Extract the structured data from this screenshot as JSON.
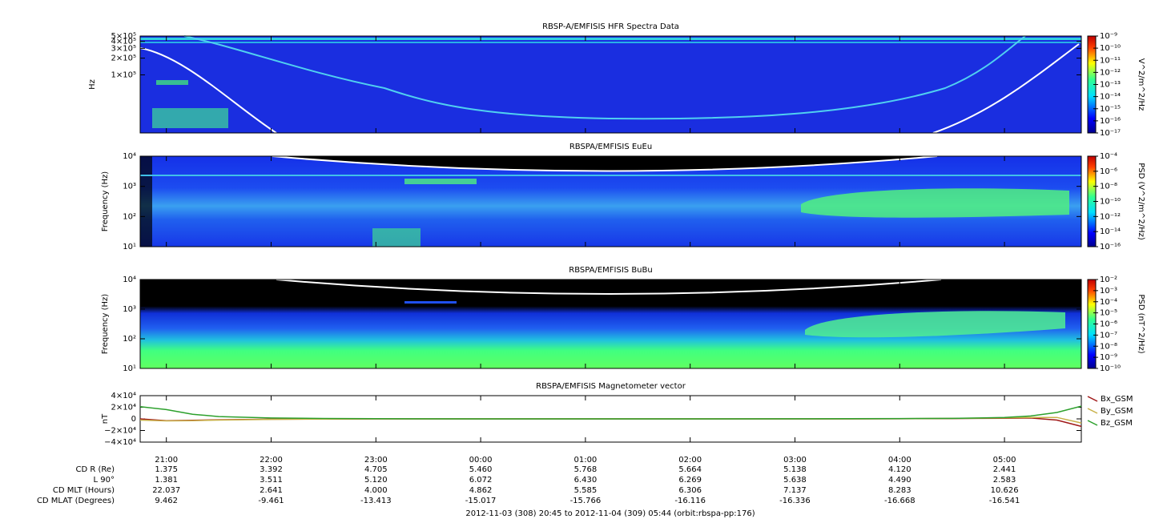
{
  "chart_data": [
    {
      "type": "spectrogram",
      "title": "RBSP-A/EMFISIS  HFR Spectra Data",
      "ylabel": "Hz",
      "log_y": true,
      "ylim": [
        9000,
        500000
      ],
      "yticks": [
        {
          "value": 500000,
          "label": "5×10⁵"
        },
        {
          "value": 400000,
          "label": "4×10⁵"
        },
        {
          "value": 300000,
          "label": "3×10⁵"
        },
        {
          "value": 200000,
          "label": "2×10⁵"
        },
        {
          "value": 100000,
          "label": "1×10⁵"
        }
      ],
      "zlabel": "V^2/m^2/Hz",
      "log_z": true,
      "zlim": [
        1e-17,
        1e-09
      ],
      "zticks": [
        {
          "value": 1e-09,
          "label": "10⁻⁹"
        },
        {
          "value": 1e-10,
          "label": "10⁻¹⁰"
        },
        {
          "value": 1e-11,
          "label": "10⁻¹¹"
        },
        {
          "value": 1e-12,
          "label": "10⁻¹²"
        },
        {
          "value": 1e-13,
          "label": "10⁻¹³"
        },
        {
          "value": 1e-14,
          "label": "10⁻¹⁴"
        },
        {
          "value": 1e-15,
          "label": "10⁻¹⁵"
        },
        {
          "value": 1e-16,
          "label": "10⁻¹⁶"
        },
        {
          "value": 1e-17,
          "label": "10⁻¹⁷"
        }
      ]
    },
    {
      "type": "spectrogram",
      "title": "RBSPA/EMFISIS  EuEu",
      "ylabel": "Frequency (Hz)",
      "log_y": true,
      "ylim": [
        10,
        10000
      ],
      "yticks": [
        {
          "value": 10000,
          "label": "10⁴"
        },
        {
          "value": 1000,
          "label": "10³"
        },
        {
          "value": 100,
          "label": "10²"
        },
        {
          "value": 10,
          "label": "10¹"
        }
      ],
      "zlabel": "PSD (V^2/m^2/Hz)",
      "log_z": true,
      "zlim": [
        1e-16,
        0.0001
      ],
      "zticks": [
        {
          "value": 0.0001,
          "label": "10⁻⁴"
        },
        {
          "value": 1e-06,
          "label": "10⁻⁶"
        },
        {
          "value": 1e-08,
          "label": "10⁻⁸"
        },
        {
          "value": 1e-10,
          "label": "10⁻¹⁰"
        },
        {
          "value": 1e-12,
          "label": "10⁻¹²"
        },
        {
          "value": 1e-14,
          "label": "10⁻¹⁴"
        },
        {
          "value": 1e-16,
          "label": "10⁻¹⁶"
        }
      ]
    },
    {
      "type": "spectrogram",
      "title": "RBSPA/EMFISIS  BuBu",
      "ylabel": "Frequency (Hz)",
      "log_y": true,
      "ylim": [
        10,
        10000
      ],
      "yticks": [
        {
          "value": 10000,
          "label": "10⁴"
        },
        {
          "value": 1000,
          "label": "10³"
        },
        {
          "value": 100,
          "label": "10²"
        },
        {
          "value": 10,
          "label": "10¹"
        }
      ],
      "zlabel": "PSD (nT^2/Hz)",
      "log_z": true,
      "zlim": [
        1e-10,
        0.01
      ],
      "zticks": [
        {
          "value": 0.01,
          "label": "10⁻²"
        },
        {
          "value": 0.001,
          "label": "10⁻³"
        },
        {
          "value": 0.0001,
          "label": "10⁻⁴"
        },
        {
          "value": 1e-05,
          "label": "10⁻⁵"
        },
        {
          "value": 1e-06,
          "label": "10⁻⁶"
        },
        {
          "value": 1e-07,
          "label": "10⁻⁷"
        },
        {
          "value": 1e-08,
          "label": "10⁻⁸"
        },
        {
          "value": 1e-09,
          "label": "10⁻⁹"
        },
        {
          "value": 1e-10,
          "label": "10⁻¹⁰"
        }
      ]
    },
    {
      "type": "line",
      "title": "RBSPA/EMFISIS  Magnetometer vector",
      "ylabel": "nT",
      "ylim": [
        -40000,
        40000
      ],
      "yticks": [
        {
          "value": 40000,
          "label": "4×10⁴"
        },
        {
          "value": 20000,
          "label": "2×10⁴"
        },
        0,
        {
          "value": -20000,
          "label": "−2×10⁴"
        },
        {
          "value": -40000,
          "label": "−4×10⁴"
        }
      ],
      "xlim": [
        "20:45",
        "05:44"
      ],
      "xticks": [
        "21:00",
        "22:00",
        "23:00",
        "00:00",
        "01:00",
        "02:00",
        "03:00",
        "04:00",
        "05:00"
      ],
      "x": [
        "20:45",
        "21:00",
        "21:15",
        "21:30",
        "22:00",
        "22:30",
        "23:00",
        "00:00",
        "01:00",
        "02:00",
        "03:00",
        "03:30",
        "04:00",
        "04:30",
        "04:45",
        "05:00",
        "05:15",
        "05:30",
        "05:44"
      ],
      "series": [
        {
          "name": "Bx_GSM",
          "color": "#a01818",
          "values": [
            0,
            -3000,
            -2500,
            -1500,
            -600,
            -300,
            0,
            0,
            0,
            0,
            0,
            0,
            200,
            500,
            800,
            1000,
            1500,
            -2000,
            -13000
          ]
        },
        {
          "name": "By_GSM",
          "color": "#c8b048",
          "values": [
            -2000,
            -3500,
            -3000,
            -2000,
            -800,
            -300,
            0,
            0,
            0,
            0,
            0,
            0,
            300,
            800,
            1200,
            1800,
            2500,
            2500,
            -7000
          ]
        },
        {
          "name": "Bz_GSM",
          "color": "#2ca02c",
          "values": [
            21000,
            16000,
            8000,
            4000,
            1500,
            700,
            300,
            0,
            0,
            0,
            200,
            300,
            500,
            800,
            1500,
            2500,
            5000,
            11000,
            22000
          ]
        }
      ]
    }
  ],
  "ephemeris": {
    "rows": [
      {
        "label": "CD R (Re)",
        "values": [
          "1.375",
          "3.392",
          "4.705",
          "5.460",
          "5.768",
          "5.664",
          "5.138",
          "4.120",
          "2.441"
        ]
      },
      {
        "label": "L 90°",
        "values": [
          "1.381",
          "3.511",
          "5.120",
          "6.072",
          "6.430",
          "6.269",
          "5.638",
          "4.490",
          "2.583"
        ]
      },
      {
        "label": "CD MLT (Hours)",
        "values": [
          "22.037",
          "2.641",
          "4.000",
          "4.862",
          "5.585",
          "6.306",
          "7.137",
          "8.283",
          "10.626"
        ]
      },
      {
        "label": "CD MLAT (Degrees)",
        "values": [
          "9.462",
          "-9.461",
          "-13.413",
          "-15.017",
          "-15.766",
          "-16.116",
          "-16.336",
          "-16.668",
          "-16.541"
        ]
      }
    ]
  },
  "footer": "2012-11-03 (308) 20:45 to 2012-11-04 (309) 05:44 (orbit:rbspa-pp:176)"
}
